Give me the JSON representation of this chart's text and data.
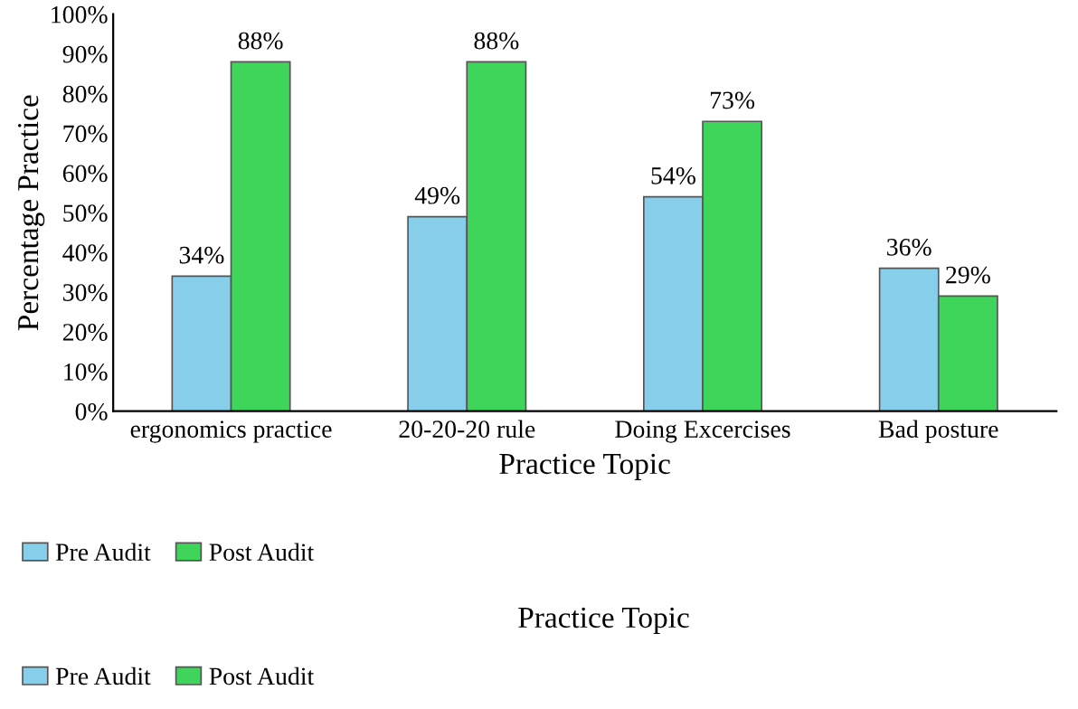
{
  "chart_data": {
    "type": "bar",
    "ylabel": "Percentage Practice",
    "xlabel": "Practice Topic",
    "categories": [
      "ergonomics practice",
      "20-20-20 rule",
      "Doing Excercises",
      "Bad posture"
    ],
    "series": [
      {
        "name": "Pre Audit",
        "color": "#87ceeb",
        "values": [
          34,
          49,
          54,
          36
        ],
        "value_labels": [
          "34%",
          "49%",
          "54%",
          "36%"
        ]
      },
      {
        "name": "Post Audit",
        "color": "#3fd45a",
        "values": [
          88,
          88,
          73,
          29
        ],
        "value_labels": [
          "88%",
          "88%",
          "73%",
          "29%"
        ]
      }
    ],
    "ylim": [
      0,
      100
    ],
    "yticks": [
      {
        "value": 0,
        "label": "0%"
      },
      {
        "value": 10,
        "label": "10%"
      },
      {
        "value": 20,
        "label": "20%"
      },
      {
        "value": 30,
        "label": "30%"
      },
      {
        "value": 40,
        "label": "40%"
      },
      {
        "value": 50,
        "label": "50%"
      },
      {
        "value": 60,
        "label": "60%"
      },
      {
        "value": 70,
        "label": "70%"
      },
      {
        "value": 80,
        "label": "80%"
      },
      {
        "value": 90,
        "label": "90%"
      },
      {
        "value": 100,
        "label": "100%"
      }
    ],
    "grid": false,
    "legend": "bottom left",
    "annotations": [
      "Practice Topic"
    ]
  }
}
